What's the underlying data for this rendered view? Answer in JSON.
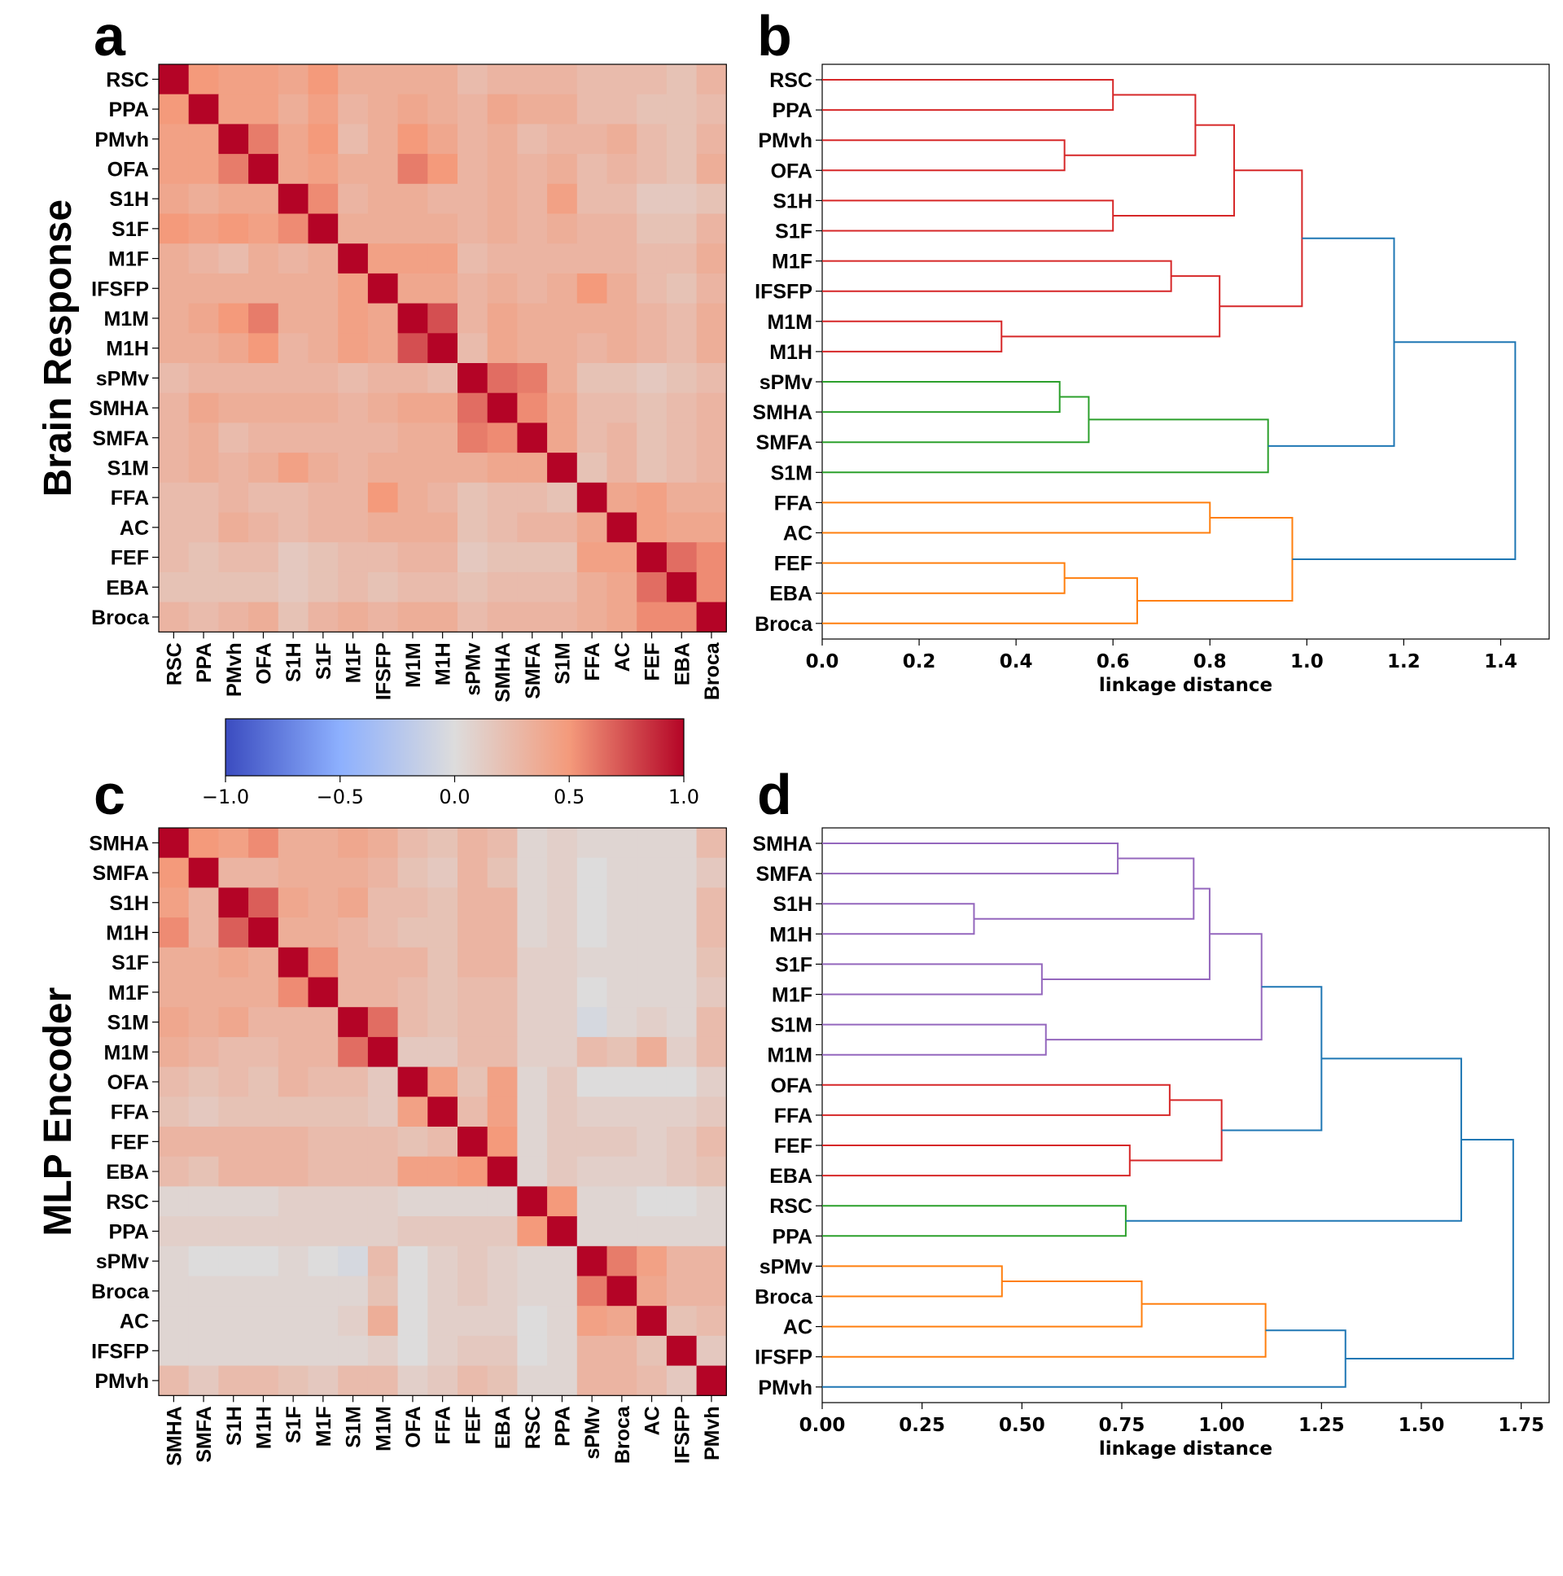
{
  "chart_data": [
    {
      "type": "heatmap",
      "panel": "a",
      "ylabel": "Brain Response",
      "labels": [
        "RSC",
        "PPA",
        "PMvh",
        "OFA",
        "S1H",
        "S1F",
        "M1F",
        "IFSFP",
        "M1M",
        "M1H",
        "sPMv",
        "SMHA",
        "SMFA",
        "S1M",
        "FFA",
        "AC",
        "FEF",
        "EBA",
        "Broca"
      ],
      "value_range": [
        -1.0,
        1.0
      ],
      "values": [
        [
          1.0,
          0.5,
          0.45,
          0.45,
          0.4,
          0.5,
          0.35,
          0.35,
          0.35,
          0.35,
          0.25,
          0.3,
          0.3,
          0.3,
          0.25,
          0.25,
          0.25,
          0.2,
          0.3
        ],
        [
          0.5,
          1.0,
          0.45,
          0.45,
          0.35,
          0.45,
          0.3,
          0.35,
          0.4,
          0.35,
          0.3,
          0.4,
          0.35,
          0.35,
          0.25,
          0.25,
          0.2,
          0.2,
          0.25
        ],
        [
          0.45,
          0.45,
          1.0,
          0.6,
          0.4,
          0.5,
          0.25,
          0.35,
          0.5,
          0.4,
          0.3,
          0.35,
          0.25,
          0.3,
          0.3,
          0.35,
          0.25,
          0.2,
          0.3
        ],
        [
          0.45,
          0.45,
          0.6,
          1.0,
          0.4,
          0.45,
          0.35,
          0.35,
          0.6,
          0.5,
          0.3,
          0.35,
          0.3,
          0.35,
          0.25,
          0.3,
          0.25,
          0.2,
          0.35
        ],
        [
          0.4,
          0.35,
          0.4,
          0.4,
          1.0,
          0.55,
          0.3,
          0.35,
          0.35,
          0.3,
          0.3,
          0.35,
          0.3,
          0.45,
          0.25,
          0.25,
          0.15,
          0.15,
          0.2
        ],
        [
          0.5,
          0.45,
          0.5,
          0.45,
          0.55,
          1.0,
          0.35,
          0.35,
          0.35,
          0.35,
          0.3,
          0.35,
          0.3,
          0.35,
          0.3,
          0.3,
          0.2,
          0.2,
          0.3
        ],
        [
          0.35,
          0.3,
          0.25,
          0.35,
          0.3,
          0.35,
          1.0,
          0.45,
          0.45,
          0.45,
          0.25,
          0.3,
          0.3,
          0.3,
          0.3,
          0.3,
          0.25,
          0.25,
          0.35
        ],
        [
          0.35,
          0.35,
          0.35,
          0.35,
          0.35,
          0.35,
          0.45,
          1.0,
          0.4,
          0.4,
          0.3,
          0.35,
          0.3,
          0.35,
          0.5,
          0.35,
          0.25,
          0.2,
          0.3
        ],
        [
          0.35,
          0.4,
          0.5,
          0.6,
          0.35,
          0.35,
          0.45,
          0.4,
          1.0,
          0.75,
          0.3,
          0.4,
          0.35,
          0.35,
          0.35,
          0.35,
          0.3,
          0.25,
          0.35
        ],
        [
          0.35,
          0.35,
          0.4,
          0.5,
          0.3,
          0.35,
          0.45,
          0.4,
          0.75,
          1.0,
          0.25,
          0.4,
          0.35,
          0.35,
          0.3,
          0.35,
          0.3,
          0.25,
          0.35
        ],
        [
          0.25,
          0.3,
          0.3,
          0.3,
          0.3,
          0.3,
          0.25,
          0.3,
          0.3,
          0.25,
          1.0,
          0.65,
          0.6,
          0.35,
          0.2,
          0.2,
          0.15,
          0.2,
          0.25
        ],
        [
          0.3,
          0.4,
          0.35,
          0.35,
          0.35,
          0.35,
          0.3,
          0.35,
          0.4,
          0.4,
          0.65,
          1.0,
          0.55,
          0.4,
          0.25,
          0.25,
          0.2,
          0.25,
          0.3
        ],
        [
          0.3,
          0.35,
          0.25,
          0.3,
          0.3,
          0.3,
          0.3,
          0.3,
          0.35,
          0.35,
          0.6,
          0.55,
          1.0,
          0.4,
          0.25,
          0.3,
          0.2,
          0.25,
          0.3
        ],
        [
          0.3,
          0.35,
          0.3,
          0.35,
          0.45,
          0.35,
          0.3,
          0.35,
          0.35,
          0.35,
          0.35,
          0.4,
          0.4,
          1.0,
          0.2,
          0.3,
          0.2,
          0.25,
          0.3
        ],
        [
          0.25,
          0.25,
          0.3,
          0.25,
          0.25,
          0.3,
          0.3,
          0.5,
          0.35,
          0.3,
          0.2,
          0.25,
          0.25,
          0.2,
          1.0,
          0.4,
          0.45,
          0.35,
          0.35
        ],
        [
          0.25,
          0.25,
          0.35,
          0.3,
          0.25,
          0.3,
          0.3,
          0.35,
          0.35,
          0.35,
          0.2,
          0.25,
          0.3,
          0.3,
          0.4,
          1.0,
          0.45,
          0.4,
          0.4
        ],
        [
          0.25,
          0.2,
          0.25,
          0.25,
          0.15,
          0.2,
          0.25,
          0.25,
          0.3,
          0.3,
          0.15,
          0.2,
          0.2,
          0.2,
          0.45,
          0.45,
          1.0,
          0.65,
          0.55
        ],
        [
          0.2,
          0.2,
          0.2,
          0.2,
          0.15,
          0.2,
          0.25,
          0.2,
          0.25,
          0.25,
          0.2,
          0.25,
          0.25,
          0.25,
          0.35,
          0.4,
          0.65,
          1.0,
          0.55
        ],
        [
          0.3,
          0.25,
          0.3,
          0.35,
          0.2,
          0.3,
          0.35,
          0.3,
          0.35,
          0.35,
          0.25,
          0.3,
          0.3,
          0.3,
          0.35,
          0.4,
          0.55,
          0.55,
          1.0
        ]
      ]
    },
    {
      "type": "dendrogram",
      "panel": "b",
      "xlabel": "linkage distance",
      "xlim": [
        0.0,
        1.5
      ],
      "xticks": [
        0.0,
        0.2,
        0.4,
        0.6,
        0.8,
        1.0,
        1.2,
        1.4
      ],
      "xtick_labels": [
        "0.0",
        "0.2",
        "0.4",
        "0.6",
        "0.8",
        "1.0",
        "1.2",
        "1.4"
      ],
      "leaves": [
        "RSC",
        "PPA",
        "PMvh",
        "OFA",
        "S1H",
        "S1F",
        "M1F",
        "IFSFP",
        "M1M",
        "M1H",
        "sPMv",
        "SMHA",
        "SMFA",
        "S1M",
        "FFA",
        "AC",
        "FEF",
        "EBA",
        "Broca"
      ],
      "merges": [
        {
          "a": 0,
          "b": 1,
          "h": 0.6,
          "c": "#d62728"
        },
        {
          "a": 2,
          "b": 3,
          "h": 0.5,
          "c": "#d62728"
        },
        {
          "a": 19,
          "b": 20,
          "h": 0.77,
          "c": "#d62728"
        },
        {
          "a": 4,
          "b": 5,
          "h": 0.6,
          "c": "#d62728"
        },
        {
          "a": 21,
          "b": 22,
          "h": 0.85,
          "c": "#d62728"
        },
        {
          "a": 8,
          "b": 9,
          "h": 0.37,
          "c": "#d62728"
        },
        {
          "a": 6,
          "b": 7,
          "h": 0.72,
          "c": "#d62728"
        },
        {
          "a": 25,
          "b": 24,
          "h": 0.82,
          "c": "#d62728"
        },
        {
          "a": 23,
          "b": 26,
          "h": 0.99,
          "c": "#d62728"
        },
        {
          "a": 10,
          "b": 11,
          "h": 0.49,
          "c": "#2ca02c"
        },
        {
          "a": 28,
          "b": 12,
          "h": 0.55,
          "c": "#2ca02c"
        },
        {
          "a": 29,
          "b": 13,
          "h": 0.92,
          "c": "#2ca02c"
        },
        {
          "a": 27,
          "b": 30,
          "h": 1.18,
          "c": "#1f77b4"
        },
        {
          "a": 14,
          "b": 15,
          "h": 0.8,
          "c": "#ff7f0e"
        },
        {
          "a": 16,
          "b": 17,
          "h": 0.5,
          "c": "#ff7f0e"
        },
        {
          "a": 33,
          "b": 18,
          "h": 0.65,
          "c": "#ff7f0e"
        },
        {
          "a": 32,
          "b": 34,
          "h": 0.97,
          "c": "#ff7f0e"
        },
        {
          "a": 31,
          "b": 35,
          "h": 1.43,
          "c": "#1f77b4"
        }
      ]
    },
    {
      "type": "heatmap",
      "panel": "c",
      "ylabel": "MLP Encoder",
      "labels": [
        "SMHA",
        "SMFA",
        "S1H",
        "M1H",
        "S1F",
        "M1F",
        "S1M",
        "M1M",
        "OFA",
        "FFA",
        "FEF",
        "EBA",
        "RSC",
        "PPA",
        "sPMv",
        "Broca",
        "AC",
        "IFSFP",
        "PMvh"
      ],
      "value_range": [
        -1.0,
        1.0
      ],
      "values": [
        [
          1.0,
          0.5,
          0.45,
          0.55,
          0.35,
          0.35,
          0.4,
          0.35,
          0.25,
          0.2,
          0.3,
          0.25,
          0.05,
          0.1,
          0.05,
          0.05,
          0.05,
          0.05,
          0.25
        ],
        [
          0.5,
          1.0,
          0.3,
          0.3,
          0.35,
          0.35,
          0.35,
          0.3,
          0.2,
          0.15,
          0.3,
          0.2,
          0.05,
          0.1,
          0.0,
          0.05,
          0.05,
          0.05,
          0.15
        ],
        [
          0.45,
          0.3,
          1.0,
          0.7,
          0.4,
          0.35,
          0.4,
          0.25,
          0.25,
          0.2,
          0.3,
          0.3,
          0.05,
          0.1,
          0.0,
          0.05,
          0.05,
          0.05,
          0.25
        ],
        [
          0.55,
          0.3,
          0.7,
          1.0,
          0.35,
          0.35,
          0.3,
          0.25,
          0.2,
          0.2,
          0.3,
          0.3,
          0.05,
          0.1,
          0.0,
          0.05,
          0.05,
          0.05,
          0.25
        ],
        [
          0.35,
          0.35,
          0.4,
          0.35,
          1.0,
          0.55,
          0.3,
          0.3,
          0.3,
          0.2,
          0.3,
          0.3,
          0.1,
          0.1,
          0.05,
          0.05,
          0.05,
          0.05,
          0.2
        ],
        [
          0.35,
          0.35,
          0.35,
          0.35,
          0.55,
          1.0,
          0.3,
          0.3,
          0.25,
          0.2,
          0.25,
          0.25,
          0.1,
          0.1,
          0.0,
          0.05,
          0.05,
          0.05,
          0.15
        ],
        [
          0.4,
          0.35,
          0.4,
          0.3,
          0.3,
          0.3,
          1.0,
          0.65,
          0.25,
          0.2,
          0.25,
          0.25,
          0.1,
          0.1,
          -0.05,
          0.05,
          0.1,
          0.05,
          0.25
        ],
        [
          0.35,
          0.3,
          0.25,
          0.25,
          0.3,
          0.3,
          0.65,
          1.0,
          0.15,
          0.15,
          0.25,
          0.25,
          0.1,
          0.1,
          0.25,
          0.2,
          0.35,
          0.1,
          0.25
        ],
        [
          0.25,
          0.2,
          0.25,
          0.2,
          0.3,
          0.25,
          0.25,
          0.15,
          1.0,
          0.45,
          0.2,
          0.45,
          0.05,
          0.15,
          0.0,
          0.0,
          0.0,
          0.0,
          0.1
        ],
        [
          0.2,
          0.15,
          0.2,
          0.2,
          0.2,
          0.2,
          0.2,
          0.15,
          0.45,
          1.0,
          0.25,
          0.45,
          0.05,
          0.15,
          0.1,
          0.1,
          0.1,
          0.1,
          0.15
        ],
        [
          0.3,
          0.3,
          0.3,
          0.3,
          0.3,
          0.25,
          0.25,
          0.25,
          0.2,
          0.25,
          1.0,
          0.5,
          0.05,
          0.15,
          0.15,
          0.15,
          0.1,
          0.15,
          0.25
        ],
        [
          0.25,
          0.2,
          0.3,
          0.3,
          0.3,
          0.25,
          0.25,
          0.25,
          0.45,
          0.45,
          0.5,
          1.0,
          0.05,
          0.15,
          0.1,
          0.1,
          0.1,
          0.15,
          0.2
        ],
        [
          0.05,
          0.05,
          0.05,
          0.05,
          0.1,
          0.1,
          0.1,
          0.1,
          0.05,
          0.05,
          0.05,
          0.05,
          1.0,
          0.5,
          0.05,
          0.05,
          0.0,
          0.0,
          0.05
        ],
        [
          0.1,
          0.1,
          0.1,
          0.1,
          0.1,
          0.1,
          0.1,
          0.1,
          0.15,
          0.15,
          0.15,
          0.15,
          0.5,
          1.0,
          0.05,
          0.05,
          0.05,
          0.05,
          0.05
        ],
        [
          0.05,
          0.0,
          0.0,
          0.0,
          0.05,
          0.0,
          -0.05,
          0.25,
          0.0,
          0.1,
          0.15,
          0.1,
          0.05,
          0.05,
          1.0,
          0.6,
          0.45,
          0.3,
          0.3
        ],
        [
          0.05,
          0.05,
          0.05,
          0.05,
          0.05,
          0.05,
          0.05,
          0.2,
          0.0,
          0.1,
          0.15,
          0.1,
          0.05,
          0.05,
          0.6,
          1.0,
          0.4,
          0.3,
          0.3
        ],
        [
          0.05,
          0.05,
          0.05,
          0.05,
          0.05,
          0.05,
          0.1,
          0.35,
          0.0,
          0.1,
          0.1,
          0.1,
          0.0,
          0.05,
          0.45,
          0.4,
          1.0,
          0.2,
          0.25
        ],
        [
          0.05,
          0.05,
          0.05,
          0.05,
          0.05,
          0.05,
          0.05,
          0.1,
          0.0,
          0.1,
          0.15,
          0.15,
          0.0,
          0.05,
          0.3,
          0.3,
          0.2,
          1.0,
          0.15
        ],
        [
          0.25,
          0.15,
          0.25,
          0.25,
          0.2,
          0.15,
          0.25,
          0.25,
          0.1,
          0.15,
          0.25,
          0.2,
          0.05,
          0.05,
          0.3,
          0.3,
          0.25,
          0.15,
          1.0
        ]
      ]
    },
    {
      "type": "dendrogram",
      "panel": "d",
      "xlabel": "linkage distance",
      "xlim": [
        0.0,
        1.82
      ],
      "xticks": [
        0.0,
        0.25,
        0.5,
        0.75,
        1.0,
        1.25,
        1.5,
        1.75
      ],
      "xtick_labels": [
        "0.00",
        "0.25",
        "0.50",
        "0.75",
        "1.00",
        "1.25",
        "1.50",
        "1.75"
      ],
      "leaves": [
        "SMHA",
        "SMFA",
        "S1H",
        "M1H",
        "S1F",
        "M1F",
        "S1M",
        "M1M",
        "OFA",
        "FFA",
        "FEF",
        "EBA",
        "RSC",
        "PPA",
        "sPMv",
        "Broca",
        "AC",
        "IFSFP",
        "PMvh"
      ],
      "merges": [
        {
          "a": 0,
          "b": 1,
          "h": 0.74,
          "c": "#9467bd"
        },
        {
          "a": 2,
          "b": 3,
          "h": 0.38,
          "c": "#9467bd"
        },
        {
          "a": 19,
          "b": 20,
          "h": 0.93,
          "c": "#9467bd"
        },
        {
          "a": 4,
          "b": 5,
          "h": 0.55,
          "c": "#9467bd"
        },
        {
          "a": 21,
          "b": 22,
          "h": 0.97,
          "c": "#9467bd"
        },
        {
          "a": 6,
          "b": 7,
          "h": 0.56,
          "c": "#9467bd"
        },
        {
          "a": 23,
          "b": 24,
          "h": 1.1,
          "c": "#9467bd"
        },
        {
          "a": 8,
          "b": 9,
          "h": 0.87,
          "c": "#d62728"
        },
        {
          "a": 10,
          "b": 11,
          "h": 0.77,
          "c": "#d62728"
        },
        {
          "a": 26,
          "b": 27,
          "h": 1.0,
          "c": "#d62728"
        },
        {
          "a": 25,
          "b": 28,
          "h": 1.25,
          "c": "#1f77b4"
        },
        {
          "a": 12,
          "b": 13,
          "h": 0.76,
          "c": "#2ca02c"
        },
        {
          "a": 29,
          "b": 30,
          "h": 1.6,
          "c": "#1f77b4"
        },
        {
          "a": 14,
          "b": 15,
          "h": 0.45,
          "c": "#ff7f0e"
        },
        {
          "a": 32,
          "b": 16,
          "h": 0.8,
          "c": "#ff7f0e"
        },
        {
          "a": 33,
          "b": 17,
          "h": 1.11,
          "c": "#ff7f0e"
        },
        {
          "a": 34,
          "b": 18,
          "h": 1.31,
          "c": "#1f77b4"
        },
        {
          "a": 31,
          "b": 35,
          "h": 1.73,
          "c": "#1f77b4"
        }
      ]
    }
  ],
  "colorbar": {
    "range": [
      -1.0,
      1.0
    ],
    "ticks": [
      -1.0,
      -0.5,
      0.0,
      0.5,
      1.0
    ],
    "tick_labels": [
      "−1.0",
      "−0.5",
      "0.0",
      "0.5",
      "1.0"
    ]
  },
  "panel_labels": {
    "a": "a",
    "b": "b",
    "c": "c",
    "d": "d"
  }
}
